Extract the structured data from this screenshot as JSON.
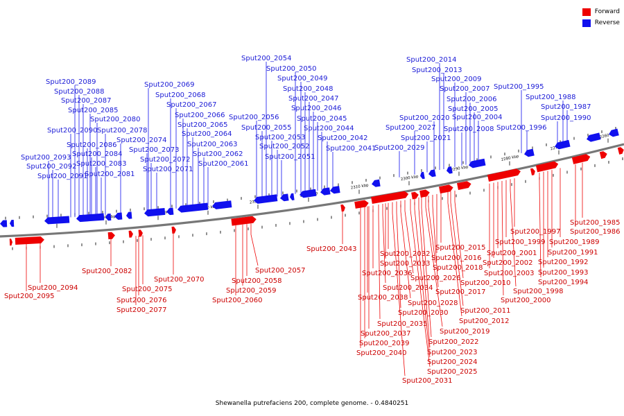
{
  "caption": "Shewanella putrefaciens 200, complete genome. - 0.4840251",
  "legend": [
    {
      "label": "Forward",
      "color": "#ee0000"
    },
    {
      "label": "Reverse",
      "color": "#1010ee"
    }
  ],
  "ticks": [
    "2370 kbp",
    "2360 kbp",
    "2350 kbp",
    "2340 kbp",
    "2330 kbp",
    "2320 kbp",
    "2310 kbp",
    "2300 kbp",
    "2290 kbp",
    "2280 kbp",
    "2270 kbp",
    "2260 kbp"
  ],
  "reverse_genes": [
    "Sput200_2093",
    "Sput200_2092",
    "Sput200_2091",
    "Sput200_2090",
    "Sput200_2089",
    "Sput200_2088",
    "Sput200_2087",
    "Sput200_2086",
    "Sput200_2085",
    "Sput200_2084",
    "Sput200_2083",
    "Sput200_2081",
    "Sput200_2080",
    "Sput200_2078",
    "Sput200_2074",
    "Sput200_2073",
    "Sput200_2072",
    "Sput200_2071",
    "Sput200_2069",
    "Sput200_2068",
    "Sput200_2067",
    "Sput200_2066",
    "Sput200_2065",
    "Sput200_2064",
    "Sput200_2063",
    "Sput200_2062",
    "Sput200_2061",
    "Sput200_2056",
    "Sput200_2055",
    "Sput200_2054",
    "Sput200_2053",
    "Sput200_2052",
    "Sput200_2051",
    "Sput200_2050",
    "Sput200_2049",
    "Sput200_2048",
    "Sput200_2047",
    "Sput200_2046",
    "Sput200_2045",
    "Sput200_2044",
    "Sput200_2042",
    "Sput200_2041",
    "Sput200_2029",
    "Sput200_2027",
    "Sput200_2021",
    "Sput200_2020",
    "Sput200_2014",
    "Sput200_2013",
    "Sput200_2009",
    "Sput200_2008",
    "Sput200_2007",
    "Sput200_2006",
    "Sput200_2005",
    "Sput200_2004",
    "Sput200_1996",
    "Sput200_1995",
    "Sput200_1990",
    "Sput200_1988",
    "Sput200_1987"
  ],
  "forward_genes": [
    "Sput200_2095",
    "Sput200_2094",
    "Sput200_2082",
    "Sput200_2077",
    "Sput200_2076",
    "Sput200_2075",
    "Sput200_2070",
    "Sput200_2060",
    "Sput200_2059",
    "Sput200_2058",
    "Sput200_2057",
    "Sput200_2043",
    "Sput200_2040",
    "Sput200_2039",
    "Sput200_2038",
    "Sput200_2037",
    "Sput200_2036",
    "Sput200_2035",
    "Sput200_2034",
    "Sput200_2033",
    "Sput200_2032",
    "Sput200_2031",
    "Sput200_2030",
    "Sput200_2028",
    "Sput200_2026",
    "Sput200_2025",
    "Sput200_2024",
    "Sput200_2023",
    "Sput200_2022",
    "Sput200_2019",
    "Sput200_2018",
    "Sput200_2017",
    "Sput200_2016",
    "Sput200_2015",
    "Sput200_2012",
    "Sput200_2011",
    "Sput200_2010",
    "Sput200_2003",
    "Sput200_2002",
    "Sput200_2001",
    "Sput200_2000",
    "Sput200_1999",
    "Sput200_1998",
    "Sput200_1997",
    "Sput200_1994",
    "Sput200_1993",
    "Sput200_1992",
    "Sput200_1991",
    "Sput200_1989",
    "Sput200_1986",
    "Sput200_1985"
  ]
}
